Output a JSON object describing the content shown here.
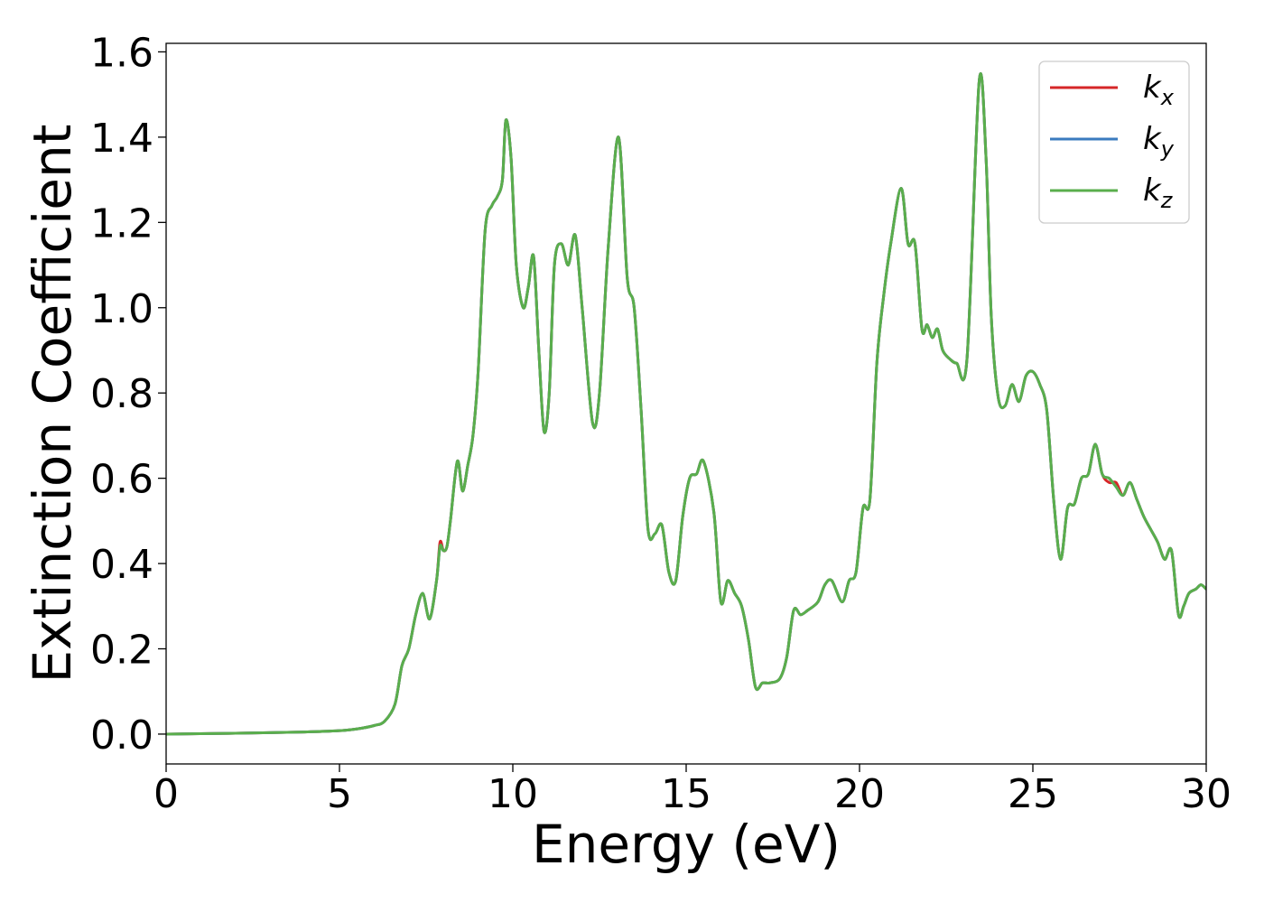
{
  "chart_data": {
    "type": "line",
    "xlabel": "Energy (eV)",
    "ylabel": "Extinction Coefficient",
    "xlim": [
      0,
      30
    ],
    "ylim": [
      -0.07,
      1.62
    ],
    "x_ticks": [
      0,
      5,
      10,
      15,
      20,
      25,
      30
    ],
    "x_tick_labels": [
      "0",
      "5",
      "10",
      "15",
      "20",
      "25",
      "30"
    ],
    "y_ticks": [
      0.0,
      0.2,
      0.4,
      0.6,
      0.8,
      1.0,
      1.2,
      1.4,
      1.6
    ],
    "y_tick_labels": [
      "0.0",
      "0.2",
      "0.4",
      "0.6",
      "0.8",
      "1.0",
      "1.2",
      "1.4",
      "1.6"
    ],
    "grid": false,
    "legend_position": "top-right",
    "series": [
      {
        "name": "k",
        "name_subscript": "x",
        "color": "#d62728",
        "x": [
          0,
          2,
          4,
          5,
          5.5,
          6,
          6.3,
          6.6,
          6.8,
          7.0,
          7.2,
          7.4,
          7.6,
          7.8,
          7.9,
          8.0,
          8.1,
          8.2,
          8.4,
          8.55,
          8.7,
          8.85,
          9.0,
          9.2,
          9.4,
          9.55,
          9.7,
          9.8,
          9.95,
          10.1,
          10.3,
          10.45,
          10.6,
          10.75,
          10.9,
          11.05,
          11.2,
          11.4,
          11.6,
          11.8,
          12.0,
          12.3,
          12.5,
          12.75,
          13.05,
          13.3,
          13.5,
          13.7,
          13.9,
          14.1,
          14.3,
          14.5,
          14.7,
          14.9,
          15.1,
          15.3,
          15.5,
          15.8,
          16.0,
          16.2,
          16.4,
          16.6,
          16.8,
          17.0,
          17.2,
          17.4,
          17.7,
          17.9,
          18.1,
          18.3,
          18.5,
          18.8,
          19.0,
          19.2,
          19.5,
          19.7,
          19.9,
          20.1,
          20.3,
          20.5,
          20.7,
          20.9,
          21.2,
          21.4,
          21.6,
          21.8,
          21.95,
          22.1,
          22.25,
          22.4,
          22.6,
          22.8,
          23.1,
          23.45,
          23.65,
          23.8,
          24.0,
          24.2,
          24.4,
          24.6,
          24.8,
          25.0,
          25.2,
          25.4,
          25.6,
          25.8,
          26.0,
          26.2,
          26.4,
          26.6,
          26.8,
          27.0,
          27.2,
          27.4,
          27.6,
          27.8,
          28.0,
          28.2,
          28.4,
          28.6,
          28.8,
          29.0,
          29.2,
          29.35,
          29.5,
          29.7,
          29.85,
          30.0
        ],
        "values": [
          0.0,
          0.002,
          0.005,
          0.008,
          0.012,
          0.02,
          0.03,
          0.07,
          0.16,
          0.2,
          0.28,
          0.33,
          0.27,
          0.36,
          0.45,
          0.43,
          0.44,
          0.5,
          0.64,
          0.57,
          0.63,
          0.7,
          0.85,
          1.18,
          1.24,
          1.26,
          1.3,
          1.44,
          1.35,
          1.1,
          1.0,
          1.05,
          1.12,
          0.9,
          0.71,
          0.8,
          1.1,
          1.15,
          1.1,
          1.17,
          1.0,
          0.73,
          0.8,
          1.14,
          1.4,
          1.07,
          1.0,
          0.76,
          0.48,
          0.47,
          0.49,
          0.38,
          0.36,
          0.51,
          0.6,
          0.61,
          0.64,
          0.52,
          0.31,
          0.36,
          0.33,
          0.3,
          0.22,
          0.11,
          0.12,
          0.12,
          0.13,
          0.18,
          0.29,
          0.28,
          0.29,
          0.31,
          0.35,
          0.36,
          0.31,
          0.36,
          0.38,
          0.53,
          0.55,
          0.87,
          1.03,
          1.15,
          1.28,
          1.15,
          1.15,
          0.95,
          0.96,
          0.93,
          0.95,
          0.9,
          0.88,
          0.87,
          0.88,
          1.53,
          1.35,
          0.98,
          0.79,
          0.77,
          0.82,
          0.78,
          0.84,
          0.85,
          0.82,
          0.76,
          0.55,
          0.41,
          0.53,
          0.54,
          0.6,
          0.61,
          0.68,
          0.61,
          0.59,
          0.59,
          0.56,
          0.59,
          0.55,
          0.51,
          0.48,
          0.45,
          0.41,
          0.43,
          0.28,
          0.3,
          0.33,
          0.34,
          0.35,
          0.34
        ]
      },
      {
        "name": "k",
        "name_subscript": "y",
        "color": "#3a7bbf",
        "x": [
          0,
          2,
          4,
          5,
          5.5,
          6,
          6.3,
          6.6,
          6.8,
          7.0,
          7.2,
          7.4,
          7.6,
          7.8,
          7.9,
          8.0,
          8.1,
          8.2,
          8.4,
          8.55,
          8.7,
          8.85,
          9.0,
          9.2,
          9.4,
          9.55,
          9.7,
          9.8,
          9.95,
          10.1,
          10.3,
          10.45,
          10.6,
          10.75,
          10.9,
          11.05,
          11.2,
          11.4,
          11.6,
          11.8,
          12.0,
          12.3,
          12.5,
          12.75,
          13.05,
          13.3,
          13.5,
          13.7,
          13.9,
          14.1,
          14.3,
          14.5,
          14.7,
          14.9,
          15.1,
          15.3,
          15.5,
          15.8,
          16.0,
          16.2,
          16.4,
          16.6,
          16.8,
          17.0,
          17.2,
          17.4,
          17.7,
          17.9,
          18.1,
          18.3,
          18.5,
          18.8,
          19.0,
          19.2,
          19.5,
          19.7,
          19.9,
          20.1,
          20.3,
          20.5,
          20.7,
          20.9,
          21.2,
          21.4,
          21.6,
          21.8,
          21.95,
          22.1,
          22.25,
          22.4,
          22.6,
          22.8,
          23.1,
          23.45,
          23.65,
          23.8,
          24.0,
          24.2,
          24.4,
          24.6,
          24.8,
          25.0,
          25.2,
          25.4,
          25.6,
          25.8,
          26.0,
          26.2,
          26.4,
          26.6,
          26.8,
          27.0,
          27.2,
          27.4,
          27.6,
          27.8,
          28.0,
          28.2,
          28.4,
          28.6,
          28.8,
          29.0,
          29.2,
          29.35,
          29.5,
          29.7,
          29.85,
          30.0
        ],
        "values": [
          0.0,
          0.002,
          0.005,
          0.008,
          0.012,
          0.02,
          0.03,
          0.07,
          0.16,
          0.2,
          0.28,
          0.33,
          0.27,
          0.36,
          0.44,
          0.43,
          0.44,
          0.5,
          0.64,
          0.57,
          0.63,
          0.7,
          0.85,
          1.18,
          1.24,
          1.26,
          1.3,
          1.44,
          1.35,
          1.1,
          1.0,
          1.05,
          1.12,
          0.9,
          0.71,
          0.8,
          1.1,
          1.15,
          1.1,
          1.17,
          1.0,
          0.73,
          0.8,
          1.14,
          1.4,
          1.07,
          1.0,
          0.76,
          0.48,
          0.47,
          0.49,
          0.38,
          0.36,
          0.51,
          0.6,
          0.61,
          0.64,
          0.52,
          0.31,
          0.36,
          0.33,
          0.3,
          0.22,
          0.11,
          0.12,
          0.12,
          0.13,
          0.18,
          0.29,
          0.28,
          0.29,
          0.31,
          0.35,
          0.36,
          0.31,
          0.36,
          0.38,
          0.53,
          0.55,
          0.87,
          1.03,
          1.15,
          1.28,
          1.15,
          1.15,
          0.95,
          0.96,
          0.93,
          0.95,
          0.9,
          0.88,
          0.87,
          0.88,
          1.53,
          1.35,
          0.98,
          0.79,
          0.77,
          0.82,
          0.78,
          0.84,
          0.85,
          0.82,
          0.76,
          0.55,
          0.41,
          0.53,
          0.54,
          0.6,
          0.61,
          0.68,
          0.61,
          0.6,
          0.58,
          0.56,
          0.59,
          0.55,
          0.51,
          0.48,
          0.45,
          0.41,
          0.43,
          0.28,
          0.3,
          0.33,
          0.34,
          0.35,
          0.34
        ]
      },
      {
        "name": "k",
        "name_subscript": "z",
        "color": "#5aae4c",
        "x": [
          0,
          2,
          4,
          5,
          5.5,
          6,
          6.3,
          6.6,
          6.8,
          7.0,
          7.2,
          7.4,
          7.6,
          7.8,
          7.9,
          8.0,
          8.1,
          8.2,
          8.4,
          8.55,
          8.7,
          8.85,
          9.0,
          9.2,
          9.4,
          9.55,
          9.7,
          9.8,
          9.95,
          10.1,
          10.3,
          10.45,
          10.6,
          10.75,
          10.9,
          11.05,
          11.2,
          11.4,
          11.6,
          11.8,
          12.0,
          12.3,
          12.5,
          12.75,
          13.05,
          13.3,
          13.5,
          13.7,
          13.9,
          14.1,
          14.3,
          14.5,
          14.7,
          14.9,
          15.1,
          15.3,
          15.5,
          15.8,
          16.0,
          16.2,
          16.4,
          16.6,
          16.8,
          17.0,
          17.2,
          17.4,
          17.7,
          17.9,
          18.1,
          18.3,
          18.5,
          18.8,
          19.0,
          19.2,
          19.5,
          19.7,
          19.9,
          20.1,
          20.3,
          20.5,
          20.7,
          20.9,
          21.2,
          21.4,
          21.6,
          21.8,
          21.95,
          22.1,
          22.25,
          22.4,
          22.6,
          22.8,
          23.1,
          23.45,
          23.65,
          23.8,
          24.0,
          24.2,
          24.4,
          24.6,
          24.8,
          25.0,
          25.2,
          25.4,
          25.6,
          25.8,
          26.0,
          26.2,
          26.4,
          26.6,
          26.8,
          27.0,
          27.2,
          27.4,
          27.6,
          27.8,
          28.0,
          28.2,
          28.4,
          28.6,
          28.8,
          29.0,
          29.2,
          29.35,
          29.5,
          29.7,
          29.85,
          30.0
        ],
        "values": [
          0.0,
          0.002,
          0.005,
          0.008,
          0.012,
          0.02,
          0.03,
          0.07,
          0.16,
          0.2,
          0.28,
          0.33,
          0.27,
          0.36,
          0.44,
          0.43,
          0.44,
          0.5,
          0.64,
          0.57,
          0.63,
          0.7,
          0.85,
          1.18,
          1.24,
          1.26,
          1.3,
          1.44,
          1.35,
          1.1,
          1.0,
          1.05,
          1.12,
          0.9,
          0.71,
          0.8,
          1.1,
          1.15,
          1.1,
          1.17,
          1.0,
          0.73,
          0.8,
          1.14,
          1.4,
          1.07,
          1.0,
          0.76,
          0.48,
          0.47,
          0.49,
          0.38,
          0.36,
          0.51,
          0.6,
          0.61,
          0.64,
          0.52,
          0.31,
          0.36,
          0.33,
          0.3,
          0.22,
          0.11,
          0.12,
          0.12,
          0.13,
          0.18,
          0.29,
          0.28,
          0.29,
          0.31,
          0.35,
          0.36,
          0.31,
          0.36,
          0.38,
          0.53,
          0.55,
          0.87,
          1.03,
          1.15,
          1.28,
          1.15,
          1.15,
          0.95,
          0.96,
          0.93,
          0.95,
          0.9,
          0.88,
          0.87,
          0.88,
          1.53,
          1.35,
          0.98,
          0.79,
          0.77,
          0.82,
          0.78,
          0.84,
          0.85,
          0.82,
          0.76,
          0.55,
          0.41,
          0.53,
          0.54,
          0.6,
          0.61,
          0.68,
          0.61,
          0.6,
          0.58,
          0.56,
          0.59,
          0.55,
          0.51,
          0.48,
          0.45,
          0.41,
          0.43,
          0.28,
          0.3,
          0.33,
          0.34,
          0.35,
          0.34
        ]
      }
    ]
  }
}
